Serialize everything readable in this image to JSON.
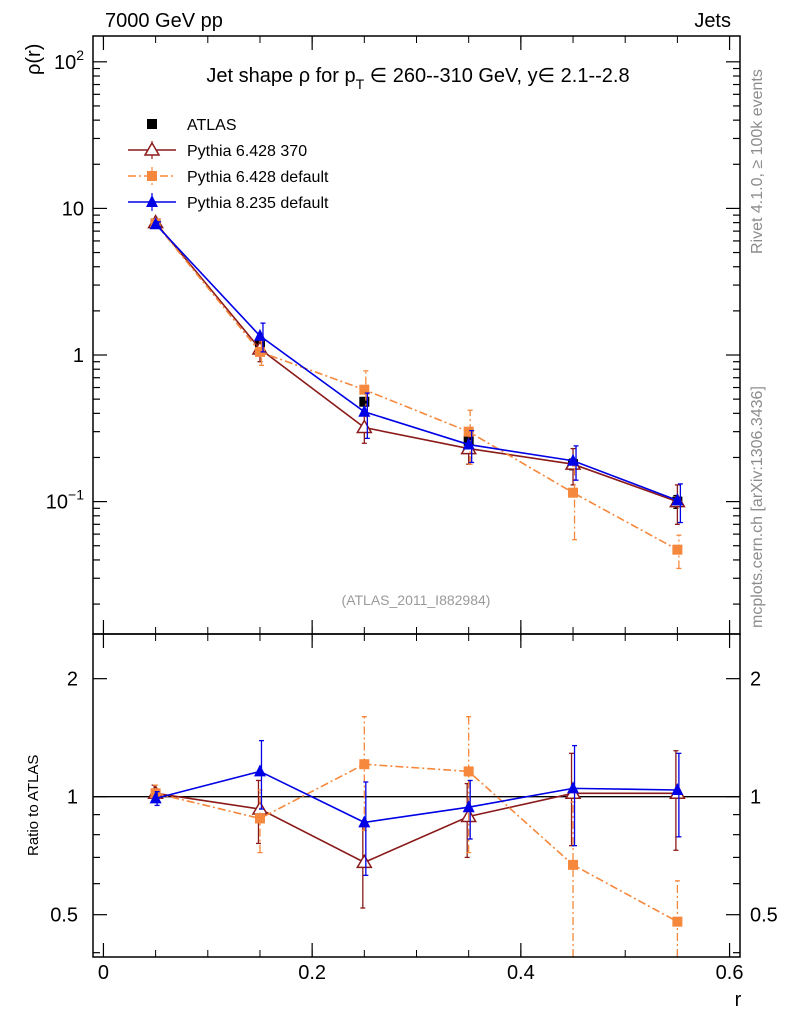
{
  "header": {
    "left": "7000 GeV pp",
    "right": "Jets"
  },
  "side_labels": {
    "rivet": "Rivet 4.1.0, ≥ 100k events",
    "mcplots": "mcplots.cern.ch [arXiv:1306.3436]"
  },
  "watermark": "(ATLAS_2011_I882984)",
  "chart_data": [
    {
      "type": "line",
      "title_parts": {
        "prefix": "Jet shape ρ for p",
        "sub": "T",
        "suffix": " ∈ 260--310 GeV, y∈ 2.1--2.8"
      },
      "ylabel": "ρ(r)",
      "yscale": "log",
      "ylim": [
        0.0125,
        150
      ],
      "xlim": [
        -0.01,
        0.61
      ],
      "yticks": [
        {
          "v": 100,
          "base": "10",
          "exp": "2"
        },
        {
          "v": 10,
          "base": "10",
          "exp": ""
        },
        {
          "v": 1,
          "base": "1",
          "exp": ""
        },
        {
          "v": 0.1,
          "base": "10",
          "exp": "−1"
        }
      ],
      "x": [
        0.05,
        0.15,
        0.25,
        0.35,
        0.45,
        0.55
      ],
      "series": [
        {
          "name": "ATLAS",
          "color": "#000000",
          "marker": "square",
          "style": "points",
          "values": [
            7.9,
            1.18,
            0.48,
            0.26,
            0.18,
            0.1
          ],
          "err": [
            0.3,
            0.05,
            0.03,
            0.02,
            0.015,
            0.01
          ]
        },
        {
          "name": "Pythia 6.428 370",
          "color": "#8b1a1a",
          "marker": "open-triangle",
          "style": "solid",
          "values": [
            8.0,
            1.1,
            0.32,
            0.23,
            0.18,
            0.1
          ],
          "err": [
            0.4,
            0.2,
            0.07,
            0.05,
            0.05,
            0.03
          ]
        },
        {
          "name": "Pythia 6.428 default",
          "color": "#f5883c",
          "marker": "square",
          "style": "dashdot",
          "values": [
            7.9,
            1.05,
            0.58,
            0.3,
            0.115,
            0.047
          ],
          "err": [
            0.4,
            0.2,
            0.2,
            0.12,
            0.06,
            0.012
          ]
        },
        {
          "name": "Pythia 8.235 default",
          "color": "#0000e6",
          "marker": "filled-triangle",
          "style": "solid",
          "values": [
            7.8,
            1.35,
            0.41,
            0.245,
            0.19,
            0.102
          ],
          "err": [
            0.3,
            0.3,
            0.14,
            0.06,
            0.05,
            0.03
          ]
        }
      ]
    },
    {
      "type": "line",
      "ylabel": "Ratio to ATLAS",
      "xlabel": "r",
      "yscale": "log",
      "ylim": [
        0.39,
        2.6
      ],
      "xlim": [
        -0.01,
        0.61
      ],
      "xticks": [
        {
          "v": 0,
          "label": "0"
        },
        {
          "v": 0.2,
          "label": "0.2"
        },
        {
          "v": 0.4,
          "label": "0.4"
        },
        {
          "v": 0.6,
          "label": "0.6"
        }
      ],
      "yticks": [
        {
          "v": 2,
          "label": "2"
        },
        {
          "v": 1,
          "label": "1"
        },
        {
          "v": 0.5,
          "label": "0.5"
        }
      ],
      "x": [
        0.05,
        0.15,
        0.25,
        0.35,
        0.45,
        0.55
      ],
      "reference": 1,
      "series": [
        {
          "name": "Pythia 6.428 370",
          "color": "#8b1a1a",
          "marker": "open-triangle",
          "style": "solid",
          "values": [
            1.02,
            0.93,
            0.68,
            0.89,
            1.02,
            1.02
          ],
          "err": [
            0.05,
            0.17,
            0.16,
            0.19,
            0.27,
            0.29
          ]
        },
        {
          "name": "Pythia 6.428 default",
          "color": "#f5883c",
          "marker": "square",
          "style": "dashdot",
          "values": [
            1.02,
            0.88,
            1.21,
            1.16,
            0.67,
            0.48
          ],
          "err": [
            0.05,
            0.16,
            0.39,
            0.44,
            0.3,
            0.13
          ]
        },
        {
          "name": "Pythia 8.235 default",
          "color": "#0000e6",
          "marker": "filled-triangle",
          "style": "solid",
          "values": [
            0.99,
            1.16,
            0.86,
            0.94,
            1.05,
            1.04
          ],
          "err": [
            0.04,
            0.23,
            0.23,
            0.16,
            0.3,
            0.25
          ]
        }
      ]
    }
  ]
}
